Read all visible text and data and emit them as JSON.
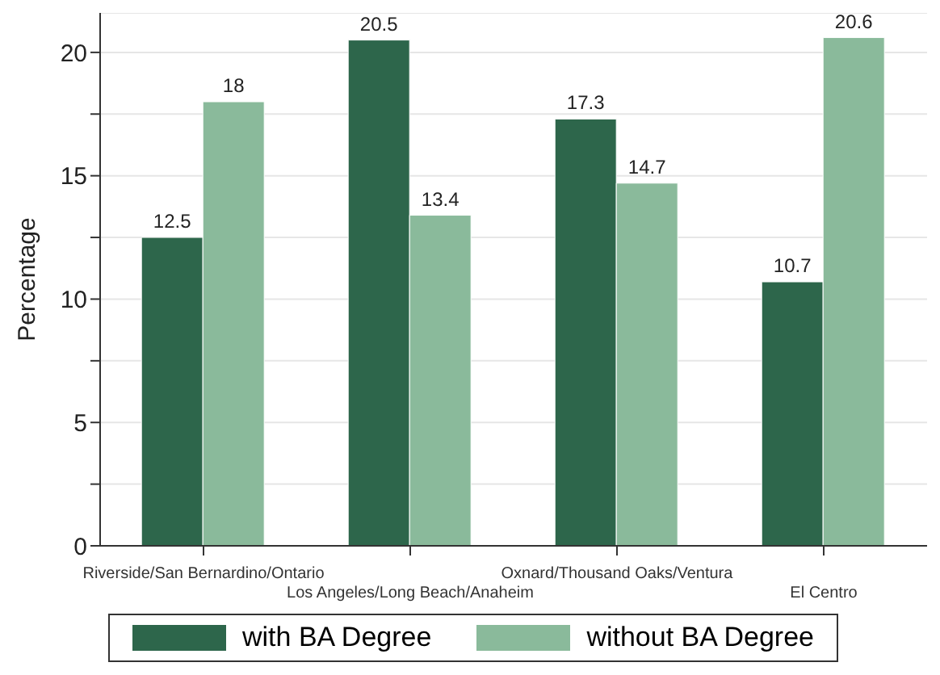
{
  "chart_data": {
    "type": "bar",
    "ylabel": "Percentage",
    "categories": [
      "Riverside/San Bernardino/Ontario",
      "Los Angeles/Long Beach/Anaheim",
      "Oxnard/Thousand Oaks/Ventura",
      "El Centro"
    ],
    "series": [
      {
        "name": "with BA Degree",
        "color": "#2d664b",
        "values": [
          12.5,
          20.5,
          17.3,
          10.7
        ]
      },
      {
        "name": "without BA Degree",
        "color": "#8aba9b",
        "values": [
          18,
          13.4,
          14.7,
          20.6
        ]
      }
    ],
    "ylim": [
      0,
      21.6
    ],
    "yticks": [
      0,
      {
        "value": 2.5,
        "label": null
      },
      5,
      {
        "value": 7.5,
        "label": null
      },
      10,
      {
        "value": 12.5,
        "label": null
      },
      15,
      {
        "value": 17.5,
        "label": null
      },
      20
    ],
    "grid": "y",
    "data_labels": true,
    "legend": "bottom"
  }
}
